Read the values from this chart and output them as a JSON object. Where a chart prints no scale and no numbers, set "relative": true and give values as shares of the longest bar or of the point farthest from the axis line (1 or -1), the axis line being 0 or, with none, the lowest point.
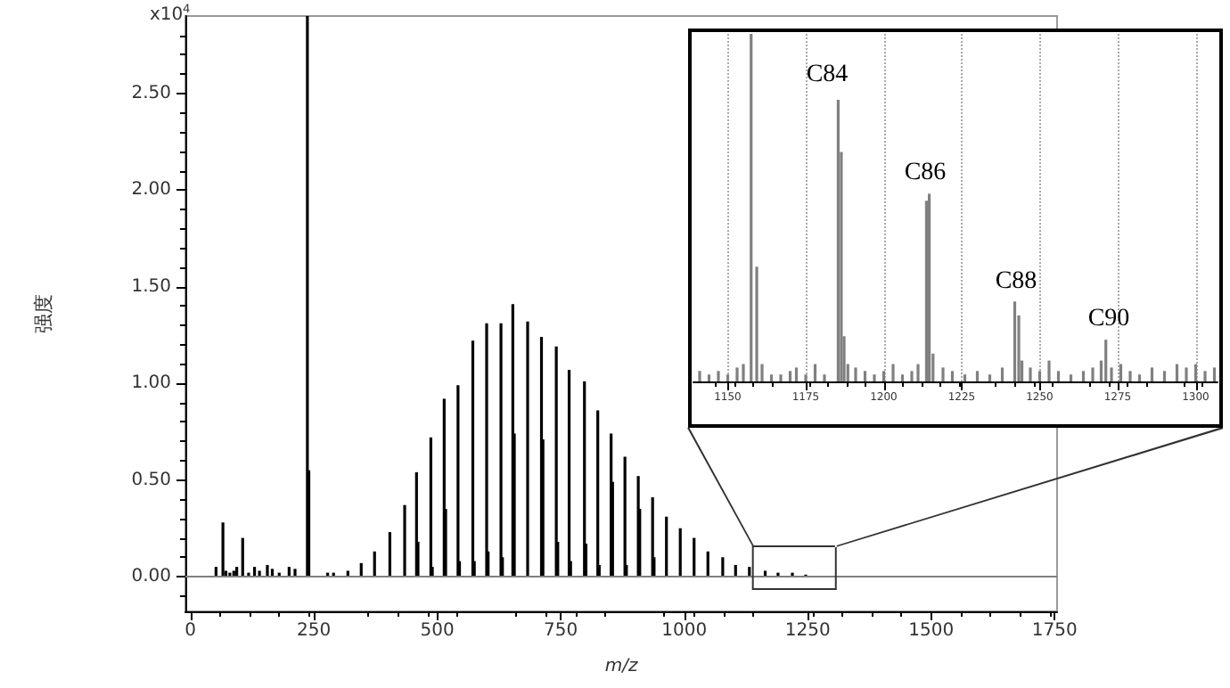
{
  "chart_data": [
    {
      "type": "bar",
      "xlabel": "m/z",
      "ylabel": "强度",
      "annotations": [
        "x10$^{4}$"
      ],
      "x": [
        52,
        66,
        72,
        80,
        88,
        94,
        106,
        118,
        130,
        140,
        156,
        166,
        180,
        200,
        212,
        237,
        240,
        278,
        290,
        319,
        346,
        373,
        404,
        434,
        458,
        461,
        487,
        490,
        514,
        517,
        542,
        545,
        572,
        575,
        600,
        603,
        629,
        632,
        653,
        656,
        683,
        711,
        714,
        741,
        744,
        767,
        770,
        798,
        801,
        825,
        828,
        852,
        855,
        880,
        883,
        907,
        910,
        936,
        939,
        964,
        992,
        1020,
        1048,
        1078,
        1104,
        1132,
        1164,
        1190,
        1219,
        1246
      ],
      "series": [
        {
          "color": "#000000",
          "values": [
            0.05,
            0.28,
            0.03,
            0.02,
            0.03,
            0.05,
            0.2,
            0.02,
            0.05,
            0.03,
            0.06,
            0.04,
            0.02,
            0.05,
            0.04,
            2.9,
            0.55,
            0.02,
            0.02,
            0.03,
            0.07,
            0.13,
            0.23,
            0.37,
            0.54,
            0.18,
            0.72,
            0.05,
            0.92,
            0.35,
            0.99,
            0.08,
            1.22,
            0.08,
            1.31,
            0.13,
            1.31,
            0.1,
            1.41,
            0.74,
            1.32,
            1.24,
            0.71,
            1.19,
            0.18,
            1.07,
            0.08,
            1.01,
            0.17,
            0.86,
            0.06,
            0.74,
            0.49,
            0.62,
            0.06,
            0.52,
            0.35,
            0.41,
            0.1,
            0.31,
            0.25,
            0.2,
            0.13,
            0.1,
            0.06,
            0.05,
            0.03,
            0.02,
            0.02,
            0.01
          ]
        }
      ],
      "xlim": [
        -10,
        1755
      ],
      "xticks": [
        0,
        250,
        500,
        750,
        1000,
        1250,
        1500,
        1750
      ],
      "ylim": [
        -0.18,
        2.9
      ],
      "yticks": [
        {
          "value": 0,
          "label": "0.00"
        },
        {
          "value": 0.5,
          "label": "0.50"
        },
        {
          "value": 1,
          "label": "1.00"
        },
        {
          "value": 1.5,
          "label": "1.50"
        },
        {
          "value": 2,
          "label": "2.00"
        },
        {
          "value": 2.5,
          "label": "2.50"
        }
      ],
      "ref_lines": [
        {
          "axis": "y",
          "value": 0,
          "color": "#808080"
        }
      ]
    },
    {
      "type": "bar",
      "relative": true,
      "grid": true,
      "tick_labels": "x",
      "annotations": [
        "C84",
        "C86",
        "C88",
        "C90"
      ],
      "x": [
        1141,
        1144,
        1147,
        1150,
        1153,
        1155,
        1157.5,
        1159.3,
        1161,
        1164,
        1167,
        1170,
        1172,
        1175,
        1178,
        1181,
        1185.4,
        1186.4,
        1187.3,
        1188.5,
        1191,
        1194,
        1197,
        1200,
        1203,
        1206,
        1209,
        1211,
        1213.7,
        1214.6,
        1215.8,
        1219,
        1222,
        1226,
        1230,
        1234,
        1238,
        1242,
        1243.3,
        1244.3,
        1247,
        1250,
        1253,
        1256,
        1260,
        1264,
        1267,
        1269.7,
        1271.2,
        1273,
        1276,
        1279,
        1282,
        1286,
        1290,
        1294,
        1297,
        1300,
        1303,
        1306
      ],
      "series": [
        {
          "color": "#808080",
          "values": [
            0.03,
            0.02,
            0.03,
            0.02,
            0.04,
            0.05,
            1,
            0.33,
            0.05,
            0.02,
            0.02,
            0.03,
            0.04,
            0.02,
            0.05,
            0.02,
            0.81,
            0.66,
            0.13,
            0.05,
            0.04,
            0.03,
            0.02,
            0.03,
            0.05,
            0.02,
            0.03,
            0.05,
            0.52,
            0.54,
            0.08,
            0.04,
            0.03,
            0.02,
            0.03,
            0.02,
            0.04,
            0.23,
            0.19,
            0.06,
            0.04,
            0.03,
            0.06,
            0.03,
            0.02,
            0.03,
            0.04,
            0.06,
            0.12,
            0.04,
            0.05,
            0.03,
            0.02,
            0.04,
            0.03,
            0.05,
            0.04,
            0.05,
            0.03,
            0.04
          ]
        }
      ],
      "xlim": [
        1139,
        1307
      ],
      "xticks": [
        1150,
        1175,
        1200,
        1225,
        1250,
        1275,
        1300
      ]
    }
  ]
}
